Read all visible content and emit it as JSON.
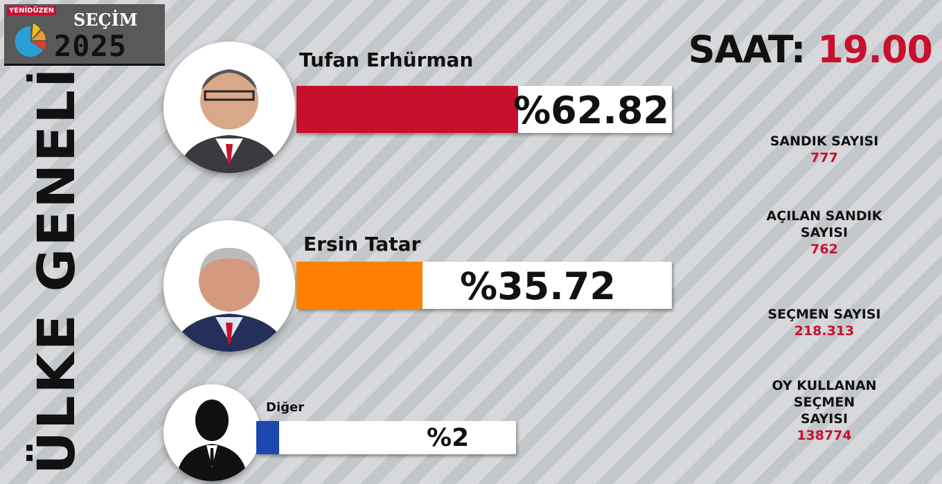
{
  "logo": {
    "brand": "YENİDÜZEN",
    "title": "SEÇİM",
    "year": "2025"
  },
  "side_title": "ÜLKE GENELİ",
  "clock": {
    "label": "SAAT:",
    "time": "19.00"
  },
  "chart_data": {
    "type": "bar",
    "categories": [
      "Tufan Erhürman",
      "Ersin Tatar",
      "Diğer"
    ],
    "values": [
      62.82,
      35.72,
      2
    ],
    "labels": [
      "%62.82",
      "%35.72",
      "%2"
    ],
    "colors": [
      "#c8102e",
      "#ff7f00",
      "#1f47b0"
    ],
    "xlim": [
      0,
      100
    ]
  },
  "stats": [
    {
      "label": "SANDIK SAYISI",
      "value": "777"
    },
    {
      "label": "AÇILAN SANDIK SAYISI",
      "value": "762"
    },
    {
      "label": "SEÇMEN SAYISI",
      "value": "218.313"
    },
    {
      "label": "OY KULLANAN SEÇMEN SAYISI",
      "value": "138774"
    }
  ]
}
